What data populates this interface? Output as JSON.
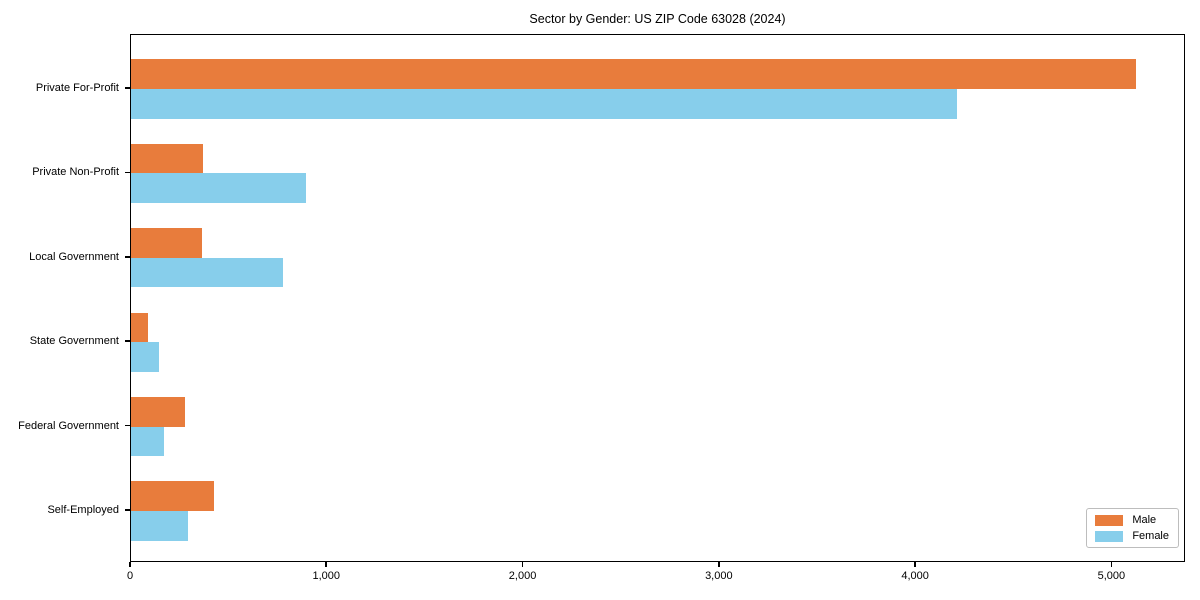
{
  "chart_data": {
    "type": "bar",
    "orientation": "horizontal",
    "title": "Sector by Gender: US ZIP Code 63028 (2024)",
    "categories": [
      "Private For-Profit",
      "Private Non-Profit",
      "Local Government",
      "State Government",
      "Federal Government",
      "Self-Employed"
    ],
    "series": [
      {
        "name": "Male",
        "color": "#e87c3c",
        "values": [
          5120,
          365,
          360,
          85,
          275,
          425
        ]
      },
      {
        "name": "Female",
        "color": "#87ceeb",
        "values": [
          4210,
          890,
          775,
          145,
          170,
          290
        ]
      }
    ],
    "xlabel": "",
    "ylabel": "",
    "xlim": [
      0,
      5375
    ],
    "x_ticks": [
      {
        "value": 0,
        "label": "0"
      },
      {
        "value": 1000,
        "label": "1,000"
      },
      {
        "value": 2000,
        "label": "2,000"
      },
      {
        "value": 3000,
        "label": "3,000"
      },
      {
        "value": 4000,
        "label": "4,000"
      },
      {
        "value": 5000,
        "label": "5,000"
      }
    ],
    "grid": false,
    "legend_position": "lower right"
  }
}
